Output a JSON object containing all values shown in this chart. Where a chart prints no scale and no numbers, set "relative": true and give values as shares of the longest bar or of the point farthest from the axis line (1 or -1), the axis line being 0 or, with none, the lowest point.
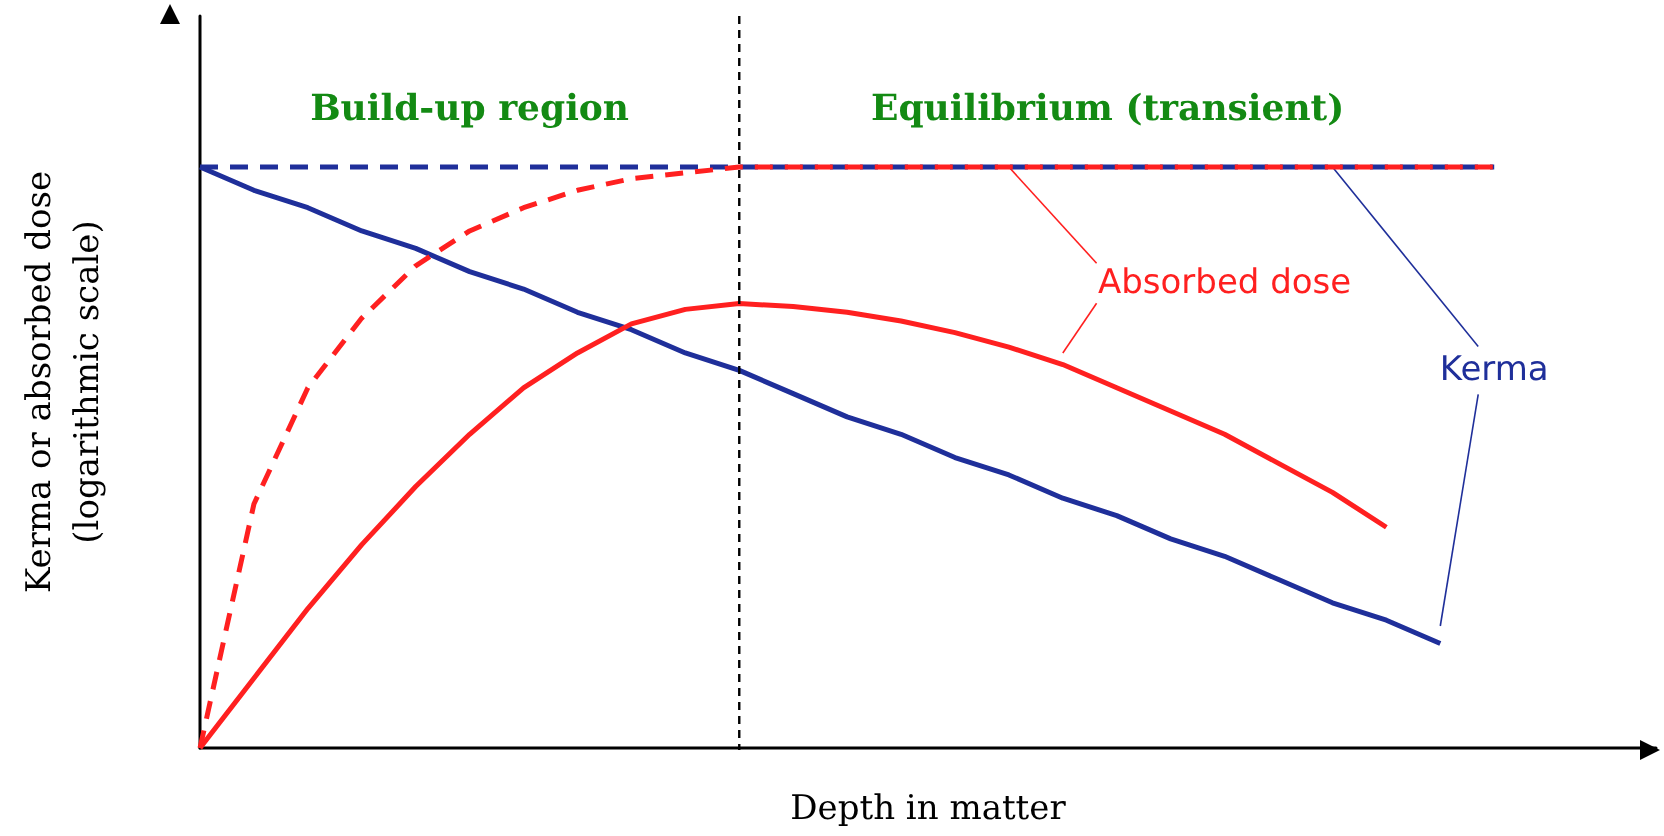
{
  "chart_data": {
    "type": "line",
    "relative": true,
    "xlabel": "Depth in matter",
    "ylabel": "Kerma or absorbed dose\n(logarithmic scale)",
    "categories": [
      null,
      null,
      null,
      null,
      null,
      null,
      null,
      null,
      null,
      null,
      null,
      null,
      null,
      null,
      null,
      null,
      null,
      null,
      null,
      null,
      null,
      null,
      null,
      null,
      null,
      null,
      null,
      null
    ],
    "series": [
      {
        "color": "#1f2f9a",
        "line_style": "dashed",
        "values": [
          1,
          1,
          1,
          1,
          1,
          1,
          1,
          1,
          1,
          1,
          1,
          1,
          1,
          1,
          1,
          1,
          1,
          1,
          1,
          1,
          1,
          1,
          1,
          1,
          1,
          null,
          null,
          null
        ]
      },
      {
        "color": "#ff2020",
        "line_style": "dashed",
        "values": [
          0,
          0.42,
          0.62,
          0.74,
          0.83,
          0.89,
          0.93,
          0.96,
          0.98,
          0.99,
          1,
          1,
          1,
          1,
          1,
          1,
          1,
          1,
          1,
          1,
          1,
          1,
          1,
          1,
          1,
          null,
          null,
          null
        ]
      },
      {
        "name": "Kerma",
        "color": "#1f2f9a",
        "line_style": "solid",
        "values": [
          1,
          0.96,
          0.93,
          0.89,
          0.86,
          0.82,
          0.79,
          0.75,
          0.72,
          0.68,
          0.65,
          0.61,
          0.57,
          0.54,
          0.5,
          0.47,
          0.43,
          0.4,
          0.36,
          0.33,
          0.29,
          0.25,
          0.22,
          0.18,
          null,
          null,
          null,
          null
        ]
      },
      {
        "name": "Absorbed dose",
        "color": "#ff2020",
        "line_style": "solid",
        "values": [
          0,
          0.12,
          0.24,
          0.35,
          0.45,
          0.54,
          0.62,
          0.68,
          0.73,
          0.755,
          0.765,
          0.76,
          0.75,
          0.735,
          0.715,
          0.69,
          0.66,
          0.62,
          0.58,
          0.54,
          0.49,
          0.44,
          0.38,
          null,
          null,
          null,
          null,
          null
        ]
      }
    ],
    "annotations": [
      "Build-up region",
      "Equilibrium (transient)"
    ],
    "marker": "none",
    "legend": false,
    "grid": false
  }
}
